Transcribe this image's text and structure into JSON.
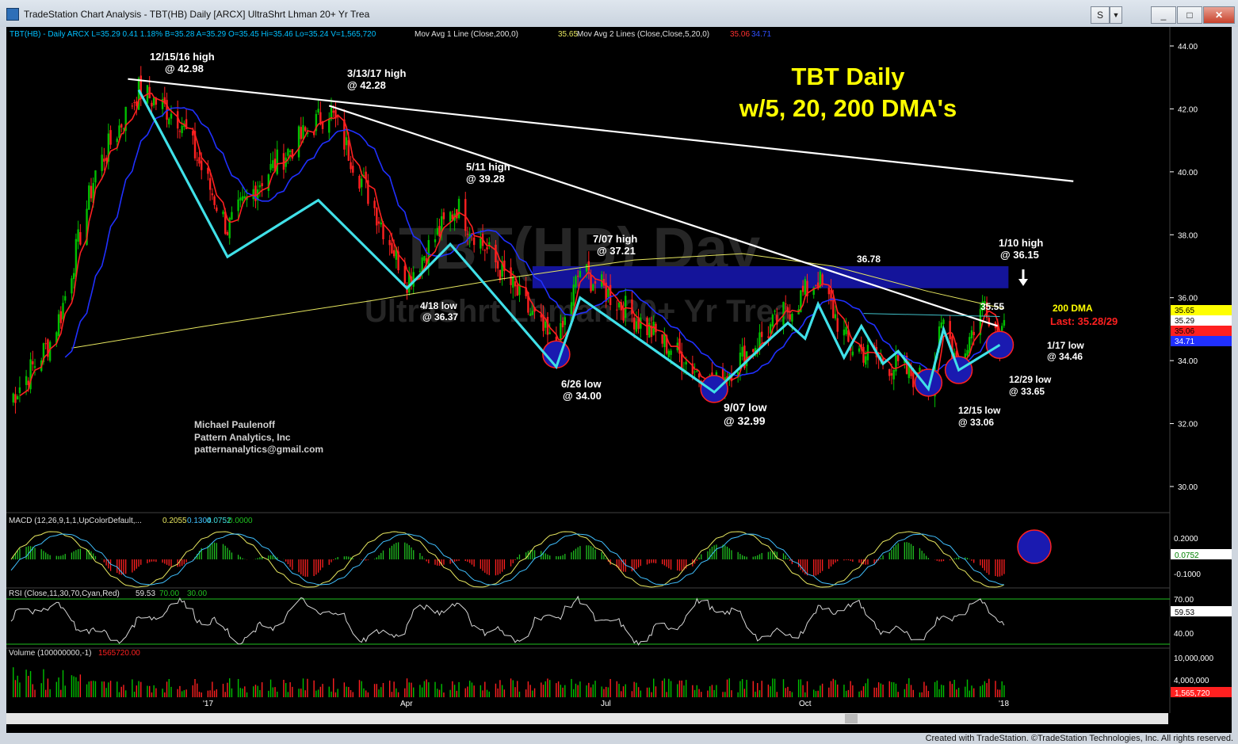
{
  "window": {
    "title": "TradeStation Chart Analysis - TBT(HB) Daily [ARCX] UltraShrt Lhman 20+ Yr Trea",
    "buttons": [
      "S",
      "_",
      "□",
      "✕"
    ],
    "credit": "Created with TradeStation. ©TradeStation Technologies, Inc. All rights reserved."
  },
  "header": {
    "symbol": "TBT(HB) - Daily ARCX L=35.29 0.41 1.18% B=35.28 A=35.29 O=35.45 Hi=35.46 Lo=35.24 V=1,565,720",
    "ma1": "Mov Avg 1 Line (Close,200,0)",
    "ma1_val": "35.65",
    "ma2": "Mov Avg 2 Lines (Close,Close,5,20,0)",
    "ma2_val1": "35.06",
    "ma2_val2": "34.71"
  },
  "watermark": {
    "line1": "TBT(HB) Day",
    "line2": "UltraShrt Lhman 20+ Yr Trea"
  },
  "headline": {
    "line1": "TBT Daily",
    "line2": "w/5, 20, 200 DMA's"
  },
  "signature": [
    "Michael Paulenoff",
    "Pattern Analytics, Inc",
    "patternanalytics@gmail.com"
  ],
  "annotations": {
    "a1215": [
      "12/15/16 high",
      "@ 42.98"
    ],
    "a313": [
      "3/13/17 high",
      "@ 42.28"
    ],
    "a511": [
      "5/11 high",
      "@ 39.28"
    ],
    "a418": [
      "4/18 low",
      "@ 36.37"
    ],
    "a707": [
      "7/07 high",
      "@ 37.21"
    ],
    "a626": [
      "6/26 low",
      "@ 34.00"
    ],
    "a907": [
      "9/07 low",
      "@ 32.99"
    ],
    "a3678": "36.78",
    "a110": [
      "1/10 high",
      "@ 36.15"
    ],
    "a3555": "35.55",
    "a1215b": [
      "12/15 low",
      "@ 33.06"
    ],
    "a1229": [
      "12/29 low",
      "@ 33.65"
    ],
    "a117": [
      "1/17 low",
      "@ 34.46"
    ],
    "dma200": "200 DMA",
    "last": "Last: 35.28/29"
  },
  "price_axis": {
    "ticks": [
      "44.00",
      "42.00",
      "40.00",
      "38.00",
      "36.00",
      "34.00",
      "32.00",
      "30.00"
    ],
    "tags": [
      "35.65",
      "35.29",
      "35.06",
      "34.71"
    ]
  },
  "x_axis": {
    "ticks": [
      "'17",
      "Apr",
      "Jul",
      "Oct",
      "'18"
    ]
  },
  "macd": {
    "label": "MACD (12,26,9,1,1,UpColorDefault,...",
    "values": [
      "0.2055",
      "0.1304",
      "0.0752",
      "0.0000"
    ],
    "ticks": [
      "0.2000",
      "-0.1000"
    ],
    "tag": "0.0752"
  },
  "rsi": {
    "label": "RSI (Close,11,30,70,Cyan,Red)",
    "values": [
      "59.53",
      "70.00",
      "30.00"
    ],
    "ticks": [
      "70.00",
      "40.00"
    ],
    "tag": "59.53"
  },
  "volume": {
    "label": "Volume (100000000,-1)",
    "value": "1565720.00",
    "ticks": [
      "10,000,000",
      "4,000,000"
    ],
    "tag": "1,565,720"
  },
  "colors": {
    "background": "#000000",
    "price_up": "#00c000",
    "price_down": "#ff2020",
    "ma5": "#ff2020",
    "ma20": "#2030ff",
    "ma200": "#e8e860",
    "swing_line": "#40e0e8",
    "trendline": "#ffffff",
    "resistance_zone": "#1a1aa0",
    "headline": "#ffff00"
  },
  "chart_data": {
    "type": "line",
    "title": "TBT Daily w/5, 20, 200 DMA's",
    "ylim": [
      29.0,
      44.5
    ],
    "pivots": [
      {
        "date": "2016-12-15",
        "value": 42.98,
        "label": "12/15/16 high"
      },
      {
        "date": "2017-03-13",
        "value": 42.28,
        "label": "3/13/17 high"
      },
      {
        "date": "2017-04-18",
        "value": 36.37,
        "label": "4/18 low"
      },
      {
        "date": "2017-05-11",
        "value": 39.28,
        "label": "5/11 high"
      },
      {
        "date": "2017-06-26",
        "value": 34.0,
        "label": "6/26 low"
      },
      {
        "date": "2017-07-07",
        "value": 37.21,
        "label": "7/07 high"
      },
      {
        "date": "2017-09-07",
        "value": 32.99,
        "label": "9/07 low"
      },
      {
        "date": "2017-10-25",
        "value": 36.78,
        "label": "36.78"
      },
      {
        "date": "2017-12-15",
        "value": 33.06,
        "label": "12/15 low"
      },
      {
        "date": "2017-12-29",
        "value": 33.65,
        "label": "12/29 low"
      },
      {
        "date": "2018-01-10",
        "value": 36.15,
        "label": "1/10 high"
      },
      {
        "date": "2018-01-17",
        "value": 34.46,
        "label": "1/17 low"
      }
    ],
    "swing_path": [
      {
        "date": "2016-12-15",
        "value": 42.6
      },
      {
        "date": "2017-01-25",
        "value": 37.3
      },
      {
        "date": "2017-03-08",
        "value": 39.1
      },
      {
        "date": "2017-04-18",
        "value": 36.3
      },
      {
        "date": "2017-05-08",
        "value": 37.7
      },
      {
        "date": "2017-06-26",
        "value": 33.8
      },
      {
        "date": "2017-07-07",
        "value": 36.0
      },
      {
        "date": "2017-09-07",
        "value": 33.0
      },
      {
        "date": "2017-10-03",
        "value": 34.7
      },
      {
        "date": "2017-10-11",
        "value": 35.2
      },
      {
        "date": "2017-10-19",
        "value": 34.7
      },
      {
        "date": "2017-10-25",
        "value": 35.8
      },
      {
        "date": "2017-11-06",
        "value": 34.1
      },
      {
        "date": "2017-11-14",
        "value": 35.1
      },
      {
        "date": "2017-11-24",
        "value": 33.9
      },
      {
        "date": "2017-12-01",
        "value": 34.3
      },
      {
        "date": "2017-12-15",
        "value": 33.1
      },
      {
        "date": "2017-12-22",
        "value": 35.0
      },
      {
        "date": "2017-12-29",
        "value": 33.7
      },
      {
        "date": "2018-01-17",
        "value": 34.5
      }
    ],
    "trendlines": [
      {
        "from": {
          "date": "2016-12-10",
          "value": 42.95
        },
        "to": {
          "date": "2018-02-20",
          "value": 39.7
        }
      },
      {
        "from": {
          "date": "2017-03-13",
          "value": 42.1
        },
        "to": {
          "date": "2018-01-16",
          "value": 35.1
        }
      },
      {
        "from": {
          "date": "2017-11-15",
          "value": 35.5
        },
        "to": {
          "date": "2018-01-17",
          "value": 35.4
        }
      }
    ],
    "resistance_zone": {
      "from": "2017-06-15",
      "to": "2018-01-21",
      "low": 36.3,
      "high": 37.0
    },
    "highlighted_lows": [
      {
        "date": "2017-06-26",
        "value": 34.2
      },
      {
        "date": "2017-09-07",
        "value": 33.1
      },
      {
        "date": "2017-12-15",
        "value": 33.3
      },
      {
        "date": "2017-12-29",
        "value": 33.7
      },
      {
        "date": "2018-01-17",
        "value": 34.5
      }
    ],
    "last_price": 35.29
  }
}
